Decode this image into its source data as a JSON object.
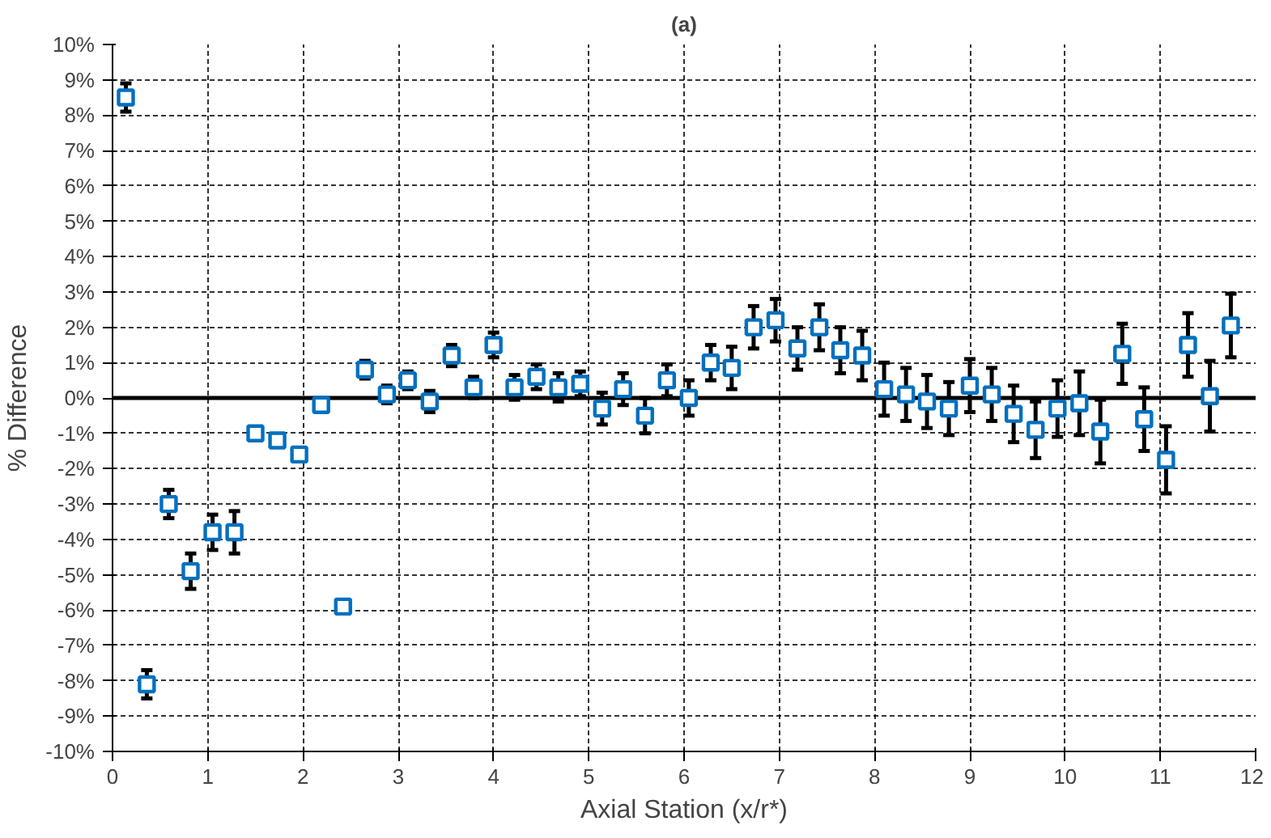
{
  "chart_data": {
    "type": "scatter",
    "title": "(a)",
    "xlabel": "Axial Station (x/r*)",
    "ylabel": "% Difference",
    "x": [
      0.14,
      0.36,
      0.59,
      0.82,
      1.05,
      1.28,
      1.5,
      1.73,
      1.96,
      2.19,
      2.42,
      2.65,
      2.88,
      3.1,
      3.33,
      3.56,
      3.79,
      4.0,
      4.22,
      4.45,
      4.68,
      4.91,
      5.14,
      5.36,
      5.59,
      5.82,
      6.05,
      6.28,
      6.5,
      6.73,
      6.96,
      7.19,
      7.42,
      7.64,
      7.87,
      8.1,
      8.33,
      8.55,
      8.78,
      9.0,
      9.23,
      9.46,
      9.69,
      9.92,
      10.15,
      10.37,
      10.6,
      10.83,
      11.06,
      11.29,
      11.52,
      11.74
    ],
    "series": [
      {
        "color": "#0070c0",
        "values": [
          8.5,
          -8.1,
          -3.0,
          -4.9,
          -3.8,
          -3.8,
          -1.0,
          -1.2,
          -1.6,
          -0.2,
          -5.9,
          0.8,
          0.1,
          0.5,
          -0.1,
          1.2,
          0.3,
          1.5,
          0.3,
          0.6,
          0.3,
          0.4,
          -0.3,
          0.25,
          -0.5,
          0.5,
          0.0,
          1.0,
          0.85,
          2.0,
          2.2,
          1.4,
          2.0,
          1.35,
          1.2,
          0.25,
          0.1,
          -0.1,
          -0.3,
          0.35,
          0.1,
          -0.45,
          -0.9,
          -0.3,
          -0.15,
          -0.95,
          1.25,
          -0.6,
          -1.75,
          1.5,
          0.05,
          2.05
        ],
        "errors": [
          0.4,
          0.4,
          0.4,
          0.5,
          0.5,
          0.6,
          null,
          null,
          null,
          null,
          null,
          0.25,
          0.25,
          0.25,
          0.3,
          0.3,
          0.3,
          0.35,
          0.35,
          0.35,
          0.4,
          0.35,
          0.45,
          0.45,
          0.5,
          0.45,
          0.5,
          0.5,
          0.6,
          0.6,
          0.6,
          0.6,
          0.65,
          0.65,
          0.7,
          0.75,
          0.75,
          0.75,
          0.75,
          0.75,
          0.75,
          0.8,
          0.8,
          0.8,
          0.9,
          0.9,
          0.85,
          0.9,
          0.95,
          0.9,
          1.0,
          0.9
        ]
      }
    ],
    "xlim": [
      0,
      12
    ],
    "xticks": [
      0,
      1,
      2,
      3,
      4,
      5,
      6,
      7,
      8,
      9,
      10,
      11,
      12
    ],
    "ylim": [
      -10,
      10
    ],
    "yticks": [
      {
        "value": -10,
        "label": "-10%"
      },
      {
        "value": -9,
        "label": "-9%"
      },
      {
        "value": -8,
        "label": "-8%"
      },
      {
        "value": -7,
        "label": "-7%"
      },
      {
        "value": -6,
        "label": "-6%"
      },
      {
        "value": -5,
        "label": "-5%"
      },
      {
        "value": -4,
        "label": "-4%"
      },
      {
        "value": -3,
        "label": "-3%"
      },
      {
        "value": -2,
        "label": "-2%"
      },
      {
        "value": -1,
        "label": "-1%"
      },
      {
        "value": 0,
        "label": "0%"
      },
      {
        "value": 1,
        "label": "1%"
      },
      {
        "value": 2,
        "label": "2%"
      },
      {
        "value": 3,
        "label": "3%"
      },
      {
        "value": 4,
        "label": "4%"
      },
      {
        "value": 5,
        "label": "5%"
      },
      {
        "value": 6,
        "label": "6%"
      },
      {
        "value": 7,
        "label": "7%"
      },
      {
        "value": 8,
        "label": "8%"
      },
      {
        "value": 9,
        "label": "9%"
      },
      {
        "value": 10,
        "label": "10%"
      }
    ],
    "ref_lines": [
      {
        "axis": "y",
        "value": 0,
        "color": "#000000"
      }
    ],
    "grid": true,
    "marker": "square"
  }
}
